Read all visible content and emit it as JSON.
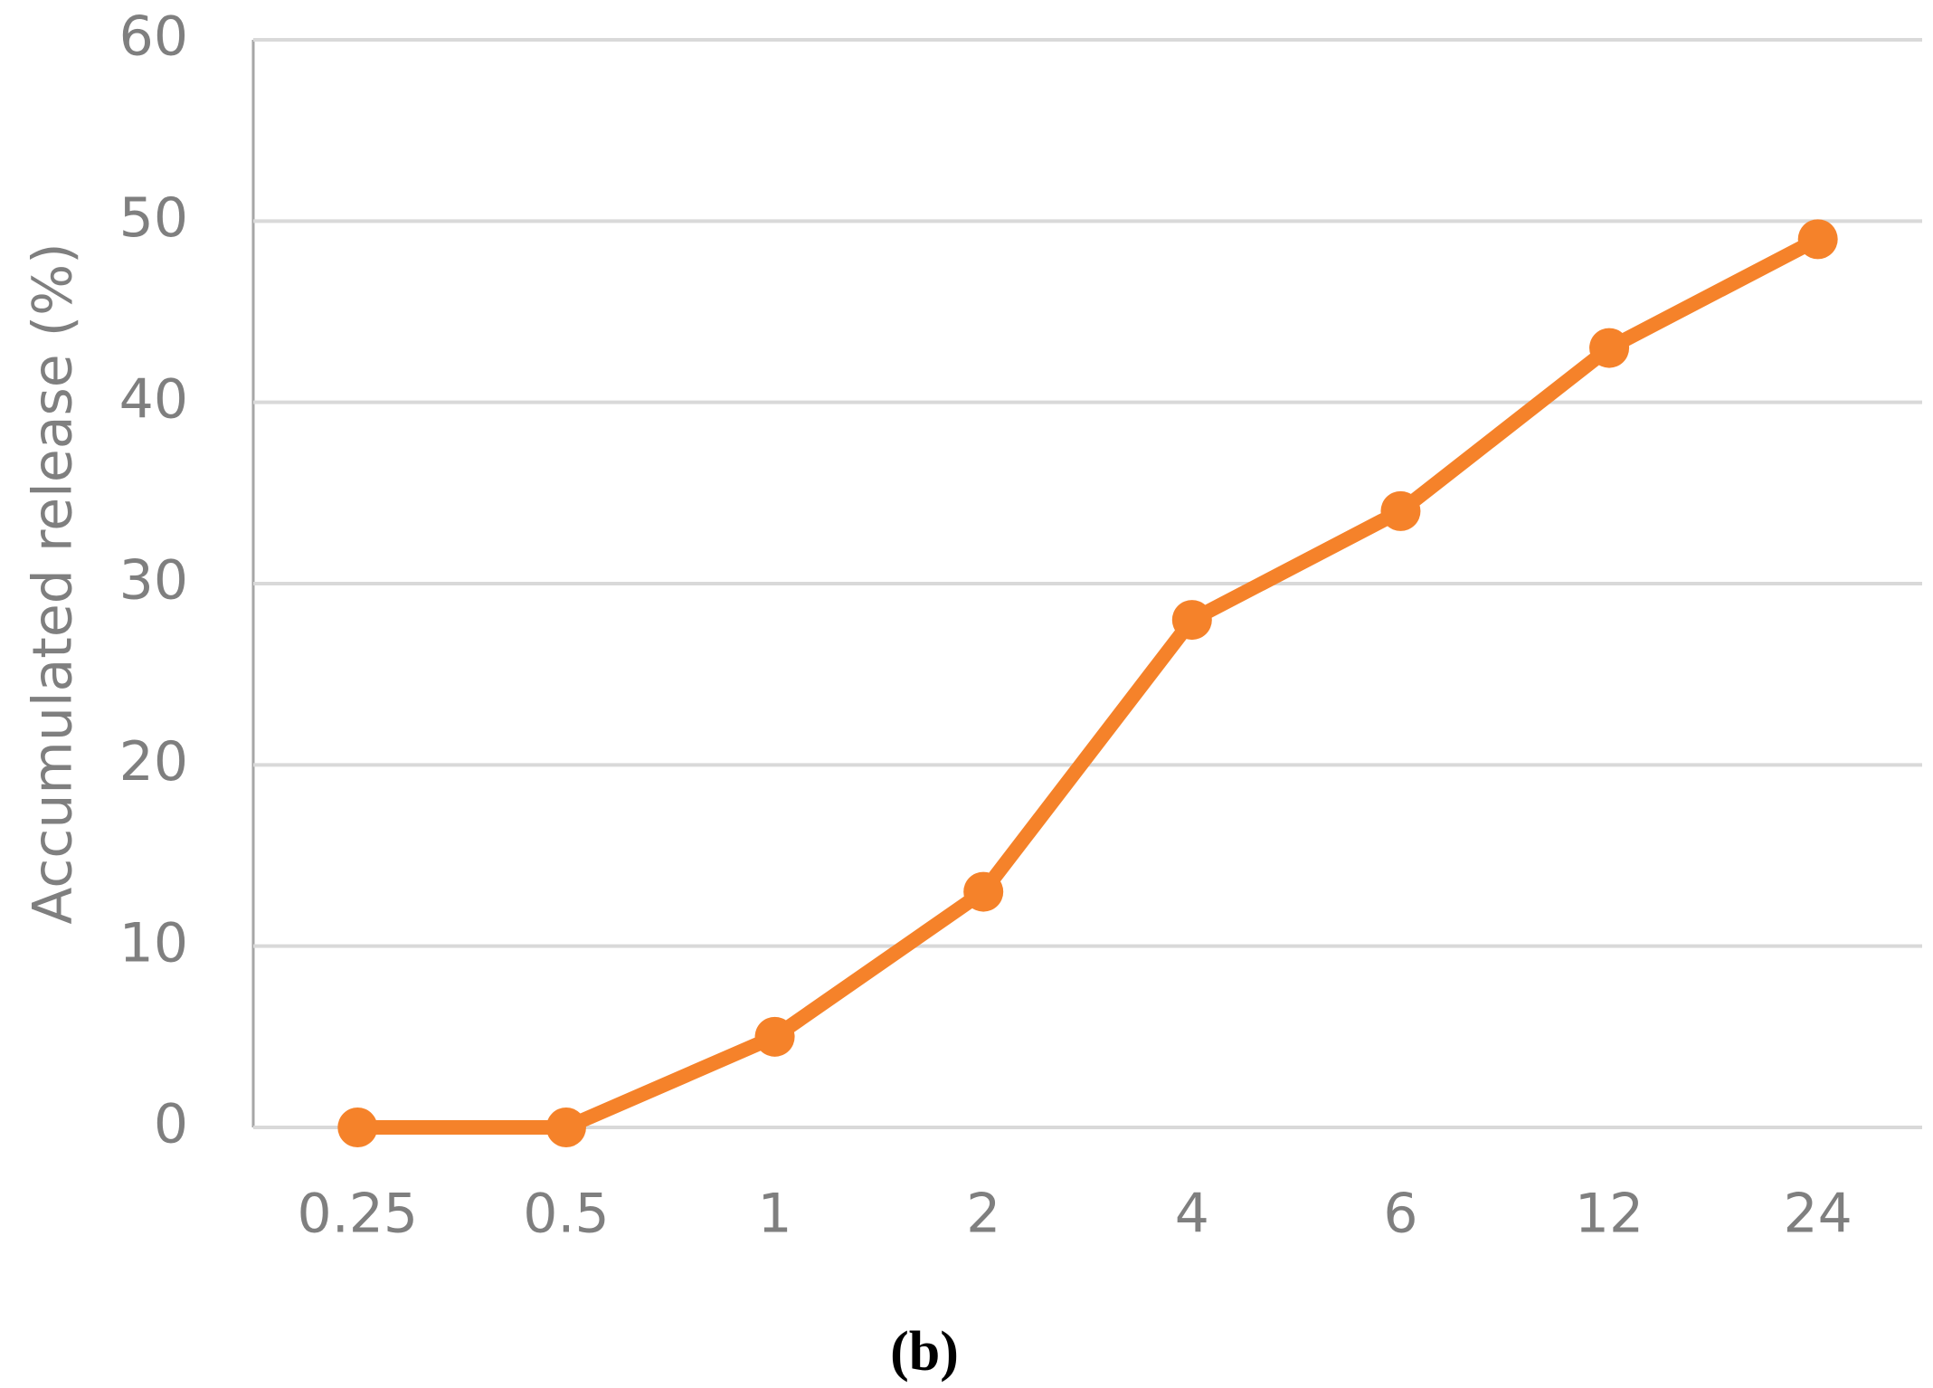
{
  "chart_data": {
    "type": "line",
    "y_label": "Accumulated release (%)",
    "caption": "(b)",
    "categories": [
      "0.25",
      "0.5",
      "1",
      "2",
      "4",
      "6",
      "12",
      "24"
    ],
    "series": [
      {
        "color": "#f5822a",
        "values": [
          0,
          0,
          5,
          13,
          28,
          34,
          43,
          49
        ]
      }
    ],
    "ylim": [
      0,
      60
    ],
    "yticks": [
      0,
      10,
      20,
      30,
      40,
      50,
      60
    ],
    "grid": true
  }
}
